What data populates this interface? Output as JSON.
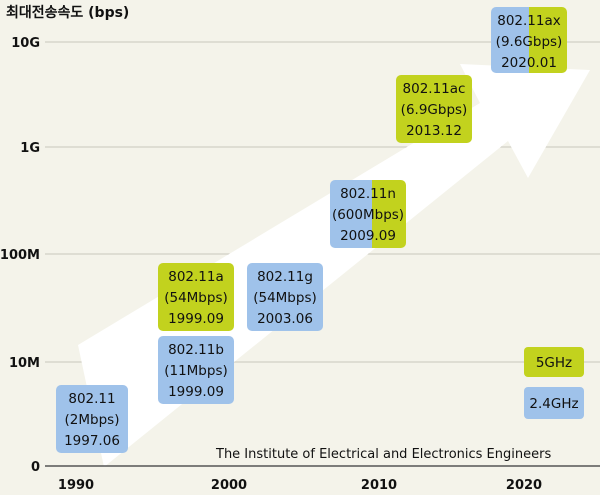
{
  "chart_data": {
    "type": "timeline",
    "ylabel": "최대전송속도 (bps)",
    "x_ticks": [
      "1990",
      "2000",
      "2010",
      "2020"
    ],
    "y_ticks": [
      "0",
      "10M",
      "100M",
      "1G",
      "10G"
    ],
    "standards": [
      {
        "standard": "802.11",
        "rate_label": "(2Mbps)",
        "date": "1997.06",
        "year": 1997.5,
        "rate_bps": 2000000.0,
        "band": "2.4GHz"
      },
      {
        "standard": "802.11b",
        "rate_label": "(11Mbps)",
        "date": "1999.09",
        "year": 1999.75,
        "rate_bps": 11000000.0,
        "band": "2.4GHz"
      },
      {
        "standard": "802.11a",
        "rate_label": "(54Mbps)",
        "date": "1999.09",
        "year": 1999.75,
        "rate_bps": 54000000.0,
        "band": "5GHz"
      },
      {
        "standard": "802.11g",
        "rate_label": "(54Mbps)",
        "date": "2003.06",
        "year": 2003.5,
        "rate_bps": 54000000.0,
        "band": "2.4GHz"
      },
      {
        "standard": "802.11n",
        "rate_label": "(600Mbps)",
        "date": "2009.09",
        "year": 2009.75,
        "rate_bps": 600000000.0,
        "band": "2.4GHz+5GHz"
      },
      {
        "standard": "802.11ac",
        "rate_label": "(6.9Gbps)",
        "date": "2013.12",
        "year": 2013.9,
        "rate_bps": 6900000000.0,
        "band": "5GHz"
      },
      {
        "standard": "802.11ax",
        "rate_label": "(9.6Gbps)",
        "date": "2020.01",
        "year": 2020.0,
        "rate_bps": 9600000000.0,
        "band": "2.4GHz+5GHz"
      }
    ],
    "legend": [
      {
        "label": "5GHz",
        "color": "#c2d21e"
      },
      {
        "label": "2.4GHz",
        "color": "#9fc2ea"
      }
    ],
    "source": "The Institute of Electrical and Electronics Engineers",
    "grid": true
  }
}
